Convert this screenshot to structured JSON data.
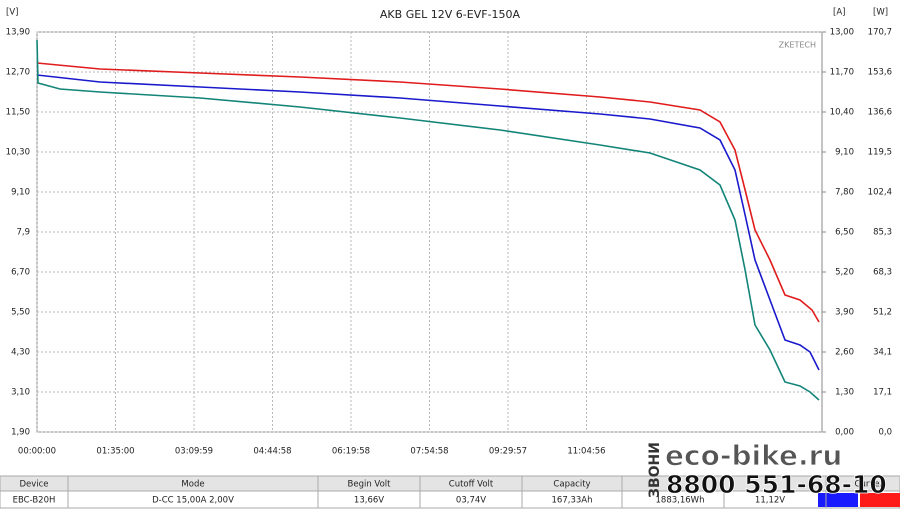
{
  "chart_data": {
    "type": "line",
    "title": "AKB GEL 12V 6-EVF-150A",
    "y_unit": "[V]",
    "y2_unit": "[A]",
    "y3_unit": "[W]",
    "brand": "ZKETECH",
    "xlim": [
      0,
      56996
    ],
    "xticks": [
      {
        "value": 0,
        "label": "00:00:00"
      },
      {
        "value": 5700,
        "label": "01:35:00"
      },
      {
        "value": 11399,
        "label": "03:09:59"
      },
      {
        "value": 17098,
        "label": "04:44:58"
      },
      {
        "value": 22798,
        "label": "06:19:58"
      },
      {
        "value": 28498,
        "label": "07:54:58"
      },
      {
        "value": 34197,
        "label": "09:29:57"
      },
      {
        "value": 39896,
        "label": "11:04:56"
      }
    ],
    "ylim": [
      1.9,
      13.9
    ],
    "yticks": [
      {
        "value": 13.9,
        "label": "13,90"
      },
      {
        "value": 12.7,
        "label": "12,70"
      },
      {
        "value": 11.5,
        "label": "11,50"
      },
      {
        "value": 10.3,
        "label": "10,30"
      },
      {
        "value": 9.1,
        "label": "9,10"
      },
      {
        "value": 7.9,
        "label": "7,9"
      },
      {
        "value": 6.7,
        "label": "6,70"
      },
      {
        "value": 5.5,
        "label": "5,50"
      },
      {
        "value": 4.3,
        "label": "4,30"
      },
      {
        "value": 3.1,
        "label": "3,10"
      },
      {
        "value": 1.9,
        "label": "1,90"
      }
    ],
    "y2lim": [
      0,
      13
    ],
    "y2ticks": [
      {
        "value": 13,
        "label": "13,00"
      },
      {
        "value": 11.7,
        "label": "11,70"
      },
      {
        "value": 10.4,
        "label": "10,40"
      },
      {
        "value": 9.1,
        "label": "9,10"
      },
      {
        "value": 7.8,
        "label": "7,80"
      },
      {
        "value": 6.5,
        "label": "6,50"
      },
      {
        "value": 5.2,
        "label": "5,20"
      },
      {
        "value": 3.9,
        "label": "3,90"
      },
      {
        "value": 2.6,
        "label": "2,60"
      },
      {
        "value": 1.3,
        "label": "1,30"
      },
      {
        "value": 0,
        "label": "0,00"
      }
    ],
    "y3lim": [
      0,
      170.7
    ],
    "y3ticks": [
      {
        "value": 170.7,
        "label": "170,7"
      },
      {
        "value": 153.6,
        "label": "153,6"
      },
      {
        "value": 136.6,
        "label": "136,6"
      },
      {
        "value": 119.5,
        "label": "119,5"
      },
      {
        "value": 102.4,
        "label": "102,4"
      },
      {
        "value": 85.3,
        "label": "85,3"
      },
      {
        "value": 68.3,
        "label": "68,3"
      },
      {
        "value": 51.2,
        "label": "51,2"
      },
      {
        "value": 34.1,
        "label": "34,1"
      },
      {
        "value": 17.1,
        "label": "17,1"
      },
      {
        "value": 0,
        "label": "0,0"
      }
    ],
    "grid": true,
    "series": [
      {
        "color": "#e01c1c",
        "x": [
          0,
          4574,
          11835,
          19097,
          26358,
          33619,
          40880,
          44510,
          48141,
          49593,
          50682,
          51409,
          52135,
          53224,
          54313,
          55402,
          56273,
          56781
        ],
        "values": [
          12.97,
          12.79,
          12.67,
          12.55,
          12.4,
          12.19,
          11.95,
          11.8,
          11.56,
          11.2,
          10.36,
          9.16,
          7.96,
          7.06,
          6.01,
          5.86,
          5.56,
          5.2
        ]
      },
      {
        "color": "#1a1acc",
        "x": [
          0,
          4574,
          11835,
          19097,
          26358,
          33619,
          40880,
          44510,
          48141,
          49593,
          50682,
          51409,
          52135,
          53224,
          54313,
          55402,
          56128,
          56781
        ],
        "values": [
          12.61,
          12.4,
          12.25,
          12.1,
          11.92,
          11.68,
          11.44,
          11.29,
          11.02,
          10.66,
          9.76,
          8.41,
          7.06,
          5.86,
          4.66,
          4.51,
          4.3,
          3.76
        ]
      },
      {
        "color": "#128478",
        "x": [
          0,
          73,
          1670,
          4574,
          11835,
          19097,
          26358,
          33619,
          40880,
          44510,
          48141,
          49593,
          50682,
          51409,
          52135,
          53224,
          54313,
          55402,
          56128,
          56781
        ],
        "values": [
          13.66,
          12.37,
          12.19,
          12.1,
          11.92,
          11.65,
          11.32,
          10.96,
          10.51,
          10.27,
          9.76,
          9.31,
          8.26,
          6.76,
          5.11,
          4.36,
          3.4,
          3.28,
          3.1,
          2.86
        ]
      }
    ]
  },
  "table": {
    "headers": [
      "Device",
      "Mode",
      "Begin Volt",
      "Cutoff Volt",
      "Capacity"
    ],
    "last_header": "CurveA",
    "rows": [
      [
        "EBC-B20H",
        "D-CC 15,00A 2,00V",
        "13,66V",
        "03,74V",
        "167,33Ah",
        "1883,16Wh",
        "11,12V"
      ]
    ]
  },
  "watermark": {
    "site": "eco-bike.ru",
    "phone": "8800 551-68-10",
    "call": "ЗВОНИ"
  }
}
